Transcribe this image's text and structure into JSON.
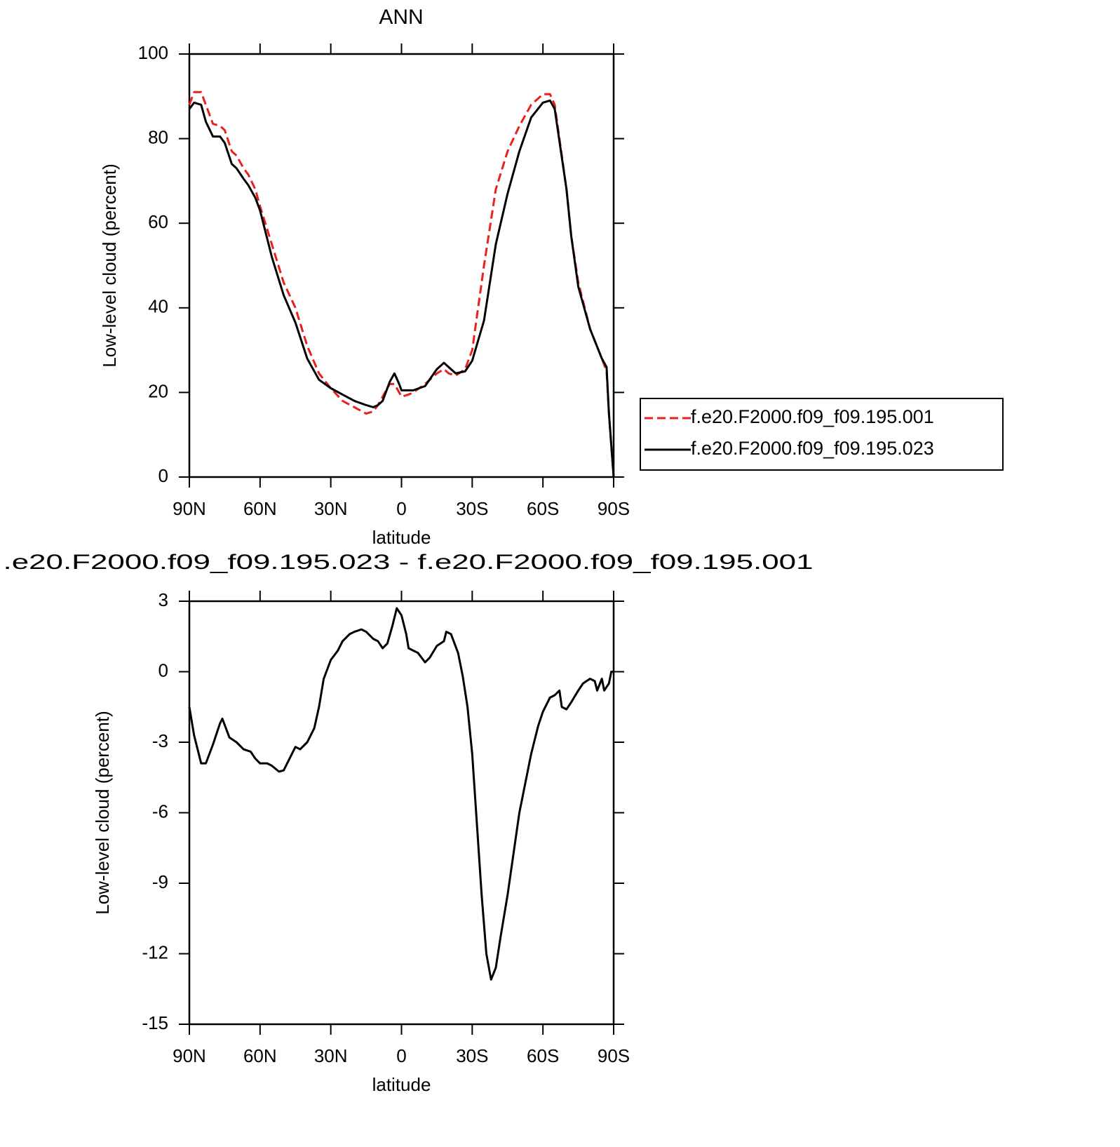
{
  "chart_data": [
    {
      "type": "line",
      "title": "ANN",
      "xlabel": "latitude",
      "ylabel": "Low-level cloud (percent)",
      "x": [
        90,
        88,
        85,
        83,
        80,
        77,
        75,
        72,
        70,
        67,
        65,
        62,
        60,
        55,
        50,
        45,
        40,
        35,
        30,
        25,
        20,
        15,
        12,
        10,
        8,
        5,
        3,
        1,
        0,
        -3,
        -5,
        -10,
        -15,
        -18,
        -20,
        -23,
        -27,
        -30,
        -35,
        -40,
        -45,
        -50,
        -55,
        -60,
        -63,
        -65,
        -70,
        -72,
        -75,
        -80,
        -85,
        -87,
        -88,
        -90
      ],
      "series": [
        {
          "name": "f.e20.F2000.f09_f09.195.001",
          "color": "#e8201e",
          "style": "dashed",
          "values": [
            88,
            91,
            91,
            88,
            83.5,
            83,
            82,
            77,
            76,
            73,
            71.5,
            68,
            64,
            55,
            46,
            40,
            31,
            24.5,
            21,
            18,
            16.5,
            15,
            15.5,
            17,
            19,
            22,
            22,
            20,
            19,
            19.5,
            20,
            22,
            24.5,
            25.5,
            24.5,
            24,
            25.5,
            30,
            50,
            68,
            77,
            83,
            88,
            90.5,
            90.5,
            88,
            68,
            57,
            46,
            35,
            28,
            25,
            15,
            0
          ]
        },
        {
          "name": "f.e20.F2000.f09_f09.195.023",
          "color": "#000000",
          "style": "solid",
          "values": [
            87,
            88.5,
            88,
            84,
            80.5,
            80.5,
            79,
            74,
            73,
            70.5,
            69,
            66,
            63,
            52,
            43,
            36.5,
            28,
            23,
            21,
            19.5,
            18,
            17,
            16.5,
            17,
            18,
            22.5,
            24.5,
            22,
            20.5,
            20.5,
            20.5,
            21.5,
            25.5,
            27,
            26,
            24.5,
            25,
            27.5,
            37,
            55,
            67,
            77,
            85,
            88.5,
            89,
            87,
            68,
            57,
            45,
            35,
            28,
            26,
            15,
            0
          ]
        }
      ],
      "xlim": [
        90,
        -90
      ],
      "xticks": [
        {
          "value": 90,
          "label": "90N"
        },
        {
          "value": 60,
          "label": "60N"
        },
        {
          "value": 30,
          "label": "30N"
        },
        0,
        {
          "value": -30,
          "label": "30S"
        },
        {
          "value": -60,
          "label": "60S"
        },
        {
          "value": -90,
          "label": "90S"
        }
      ],
      "ylim": [
        0,
        100
      ],
      "yticks": [
        0,
        20,
        40,
        60,
        80,
        100
      ],
      "legend": "right"
    },
    {
      "type": "line",
      "title": ".e20.F2000.f09_f09.195.023 - f.e20.F2000.f09_f09.195.001",
      "xlabel": "latitude",
      "ylabel": "Low-level cloud (percent)",
      "x": [
        90,
        88,
        85,
        83,
        80,
        77,
        76,
        73,
        70,
        67,
        64,
        62,
        60,
        57,
        55,
        52,
        50,
        47,
        45,
        43,
        40,
        37,
        35,
        33,
        30,
        27,
        25,
        22,
        20,
        17,
        15,
        12,
        10,
        8,
        6,
        4,
        2,
        0,
        -2,
        -3,
        -5,
        -7,
        -10,
        -12,
        -15,
        -18,
        -19,
        -21,
        -24,
        -26,
        -28,
        -30,
        -32,
        -34,
        -36,
        -38,
        -40,
        -42,
        -45,
        -50,
        -55,
        -58,
        -60,
        -63,
        -65,
        -67,
        -68,
        -70,
        -72,
        -75,
        -77,
        -80,
        -82,
        -83,
        -85,
        -86,
        -88,
        -89,
        -90
      ],
      "series": [
        {
          "color": "#000000",
          "style": "solid",
          "values": [
            -1.5,
            -2.7,
            -3.9,
            -3.9,
            -3.1,
            -2.2,
            -2.0,
            -2.8,
            -3.0,
            -3.3,
            -3.4,
            -3.7,
            -3.9,
            -3.9,
            -4.0,
            -4.25,
            -4.2,
            -3.6,
            -3.2,
            -3.3,
            -3.0,
            -2.4,
            -1.5,
            -0.3,
            0.5,
            0.9,
            1.3,
            1.6,
            1.7,
            1.8,
            1.7,
            1.4,
            1.3,
            1.0,
            1.2,
            1.9,
            2.7,
            2.4,
            1.6,
            1.0,
            0.9,
            0.8,
            0.4,
            0.6,
            1.1,
            1.3,
            1.7,
            1.6,
            0.8,
            -0.2,
            -1.5,
            -3.5,
            -6.5,
            -9.5,
            -12,
            -13.1,
            -12.6,
            -11.3,
            -9.5,
            -6.0,
            -3.5,
            -2.3,
            -1.7,
            -1.1,
            -1.0,
            -0.8,
            -1.5,
            -1.6,
            -1.3,
            -0.8,
            -0.5,
            -0.3,
            -0.4,
            -0.8,
            -0.3,
            -0.8,
            -0.5,
            0,
            0
          ]
        }
      ],
      "xlim": [
        90,
        -90
      ],
      "xticks": [
        {
          "value": 90,
          "label": "90N"
        },
        {
          "value": 60,
          "label": "60N"
        },
        {
          "value": 30,
          "label": "30N"
        },
        0,
        {
          "value": -30,
          "label": "30S"
        },
        {
          "value": -60,
          "label": "60S"
        },
        {
          "value": -90,
          "label": "90S"
        }
      ],
      "ylim": [
        -15,
        3
      ],
      "yticks": [
        -15,
        -12,
        -9,
        -6,
        -3,
        0,
        3
      ]
    }
  ]
}
